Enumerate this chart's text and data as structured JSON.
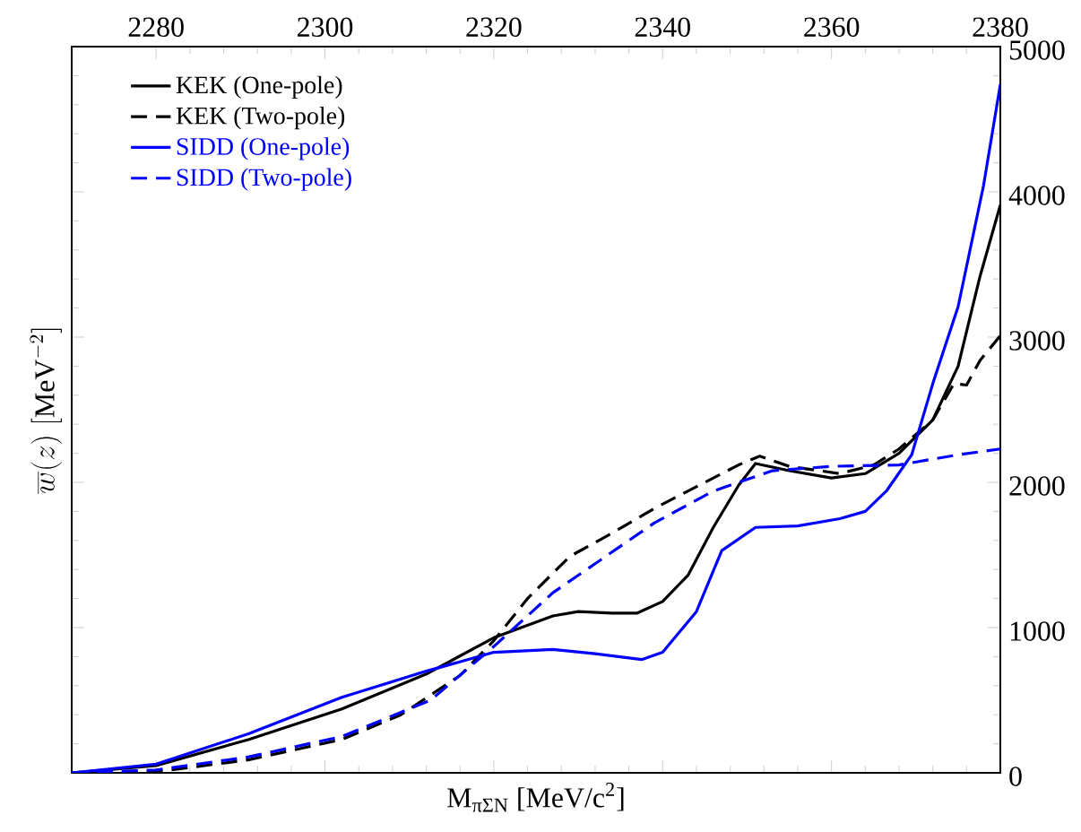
{
  "chart_data": {
    "type": "line",
    "xlabel": "M$_{πΣN}$ [MeV/c$^{2}$]",
    "ylabel": "\\overline{w}(z)\\;[\\mathrm{MeV}^{-2}]",
    "xlim": [
      2270,
      2380
    ],
    "ylim": [
      0,
      5000
    ],
    "xticks": [
      2280,
      2300,
      2320,
      2340,
      2360,
      2380
    ],
    "yticks": [
      0,
      1000,
      2000,
      3000,
      4000,
      5000
    ],
    "legend": "top left",
    "series": [
      {
        "name": "KEK (One-pole)",
        "color": "#000000",
        "line_style": "solid",
        "x": [
          2270,
          2280,
          2291,
          2302,
          2312,
          2320,
          2327,
          2330,
          2334,
          2337,
          2340,
          2343,
          2346,
          2349,
          2351,
          2355,
          2360,
          2364,
          2368,
          2372,
          2375,
          2377.6,
          2380
        ],
        "values": [
          0,
          50,
          230,
          440,
          680,
          930,
          1080,
          1110,
          1100,
          1100,
          1180,
          1360,
          1690,
          1980,
          2130,
          2080,
          2030,
          2060,
          2200,
          2430,
          2800,
          3420,
          3910
        ]
      },
      {
        "name": "KEK (Two-pole)",
        "color": "#000000",
        "line_style": "dashed",
        "x": [
          2270,
          2280.5,
          2291,
          2302,
          2309,
          2316,
          2320,
          2324,
          2329,
          2334,
          2339,
          2345,
          2349,
          2351.5,
          2355,
          2361,
          2365,
          2368,
          2372,
          2374.5,
          2376,
          2377.6,
          2380
        ],
        "values": [
          0,
          10,
          90,
          230,
          400,
          670,
          910,
          1200,
          1490,
          1650,
          1820,
          2000,
          2120,
          2180,
          2110,
          2060,
          2120,
          2230,
          2430,
          2680,
          2670,
          2840,
          3010
        ]
      },
      {
        "name": "SIDD (One-pole)",
        "color": "#0000ff",
        "line_style": "solid",
        "x": [
          2270,
          2280,
          2291,
          2302,
          2312,
          2320,
          2327,
          2332,
          2337.5,
          2340,
          2344,
          2347,
          2351,
          2356,
          2361,
          2364,
          2366.5,
          2369.5,
          2372,
          2375,
          2378,
          2380
        ],
        "values": [
          0,
          60,
          270,
          520,
          700,
          830,
          850,
          820,
          780,
          830,
          1110,
          1530,
          1690,
          1700,
          1750,
          1800,
          1940,
          2190,
          2680,
          3210,
          4040,
          4740
        ]
      },
      {
        "name": "SIDD (Two-pole)",
        "color": "#0000ff",
        "line_style": "dashed",
        "x": [
          2270,
          2280,
          2291,
          2302,
          2312.5,
          2320,
          2327,
          2332,
          2339,
          2346,
          2353,
          2360,
          2368,
          2375,
          2380
        ],
        "values": [
          0,
          20,
          110,
          250,
          500,
          870,
          1240,
          1440,
          1720,
          1940,
          2080,
          2110,
          2120,
          2190,
          2230
        ]
      }
    ]
  }
}
